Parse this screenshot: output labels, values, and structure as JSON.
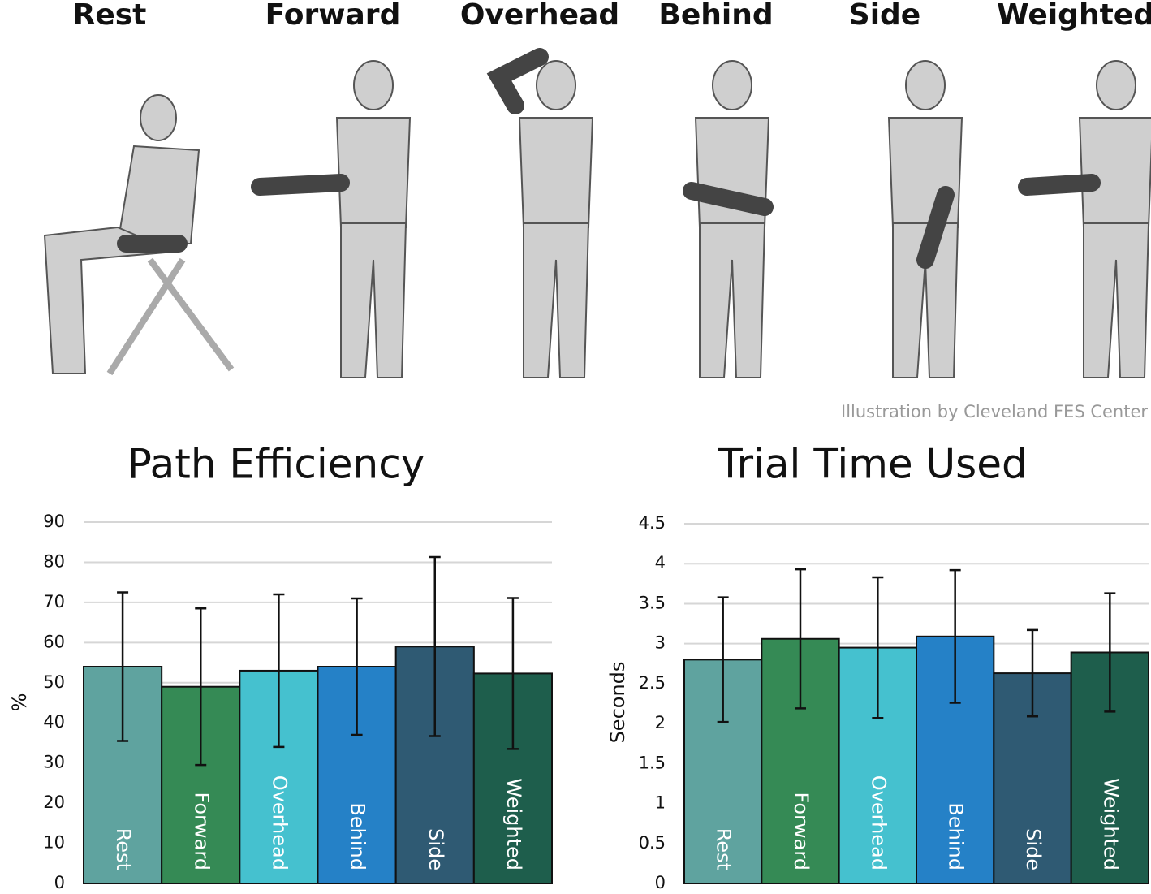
{
  "poses": [
    "Rest",
    "Forward",
    "Overhead",
    "Behind",
    "Side",
    "Weighted"
  ],
  "credit": "Illustration by Cleveland FES Center",
  "chart_data": [
    {
      "type": "bar",
      "title": "Path Efficiency",
      "y_label": "%",
      "categories": [
        "Rest",
        "Forward",
        "Overhead",
        "Behind",
        "Side",
        "Weighted"
      ],
      "values": [
        54,
        49,
        53,
        54,
        59,
        52.3
      ],
      "errors": [
        18.5,
        19.5,
        19,
        17,
        22.3,
        18.8
      ],
      "colors": [
        "#5fa39f",
        "#358a55",
        "#45c1cf",
        "#2581c7",
        "#2f5a73",
        "#1e5e4c"
      ],
      "ylim": [
        0,
        90
      ],
      "yticks": [
        0,
        10,
        20,
        30,
        40,
        50,
        60,
        70,
        80,
        90
      ],
      "grid": true
    },
    {
      "type": "bar",
      "title": "Trial Time Used",
      "y_label": "Seconds",
      "categories": [
        "Rest",
        "Forward",
        "Overhead",
        "Behind",
        "Side",
        "Weighted"
      ],
      "values": [
        2.8,
        3.06,
        2.95,
        3.09,
        2.63,
        2.89
      ],
      "errors": [
        0.78,
        0.87,
        0.88,
        0.83,
        0.54,
        0.74
      ],
      "colors": [
        "#5fa39f",
        "#358a55",
        "#45c1cf",
        "#2581c7",
        "#2f5a73",
        "#1e5e4c"
      ],
      "ylim": [
        0,
        4.5
      ],
      "yticks": [
        0,
        0.5,
        1,
        1.5,
        2,
        2.5,
        3,
        3.5,
        4,
        4.5
      ],
      "grid": true
    }
  ]
}
